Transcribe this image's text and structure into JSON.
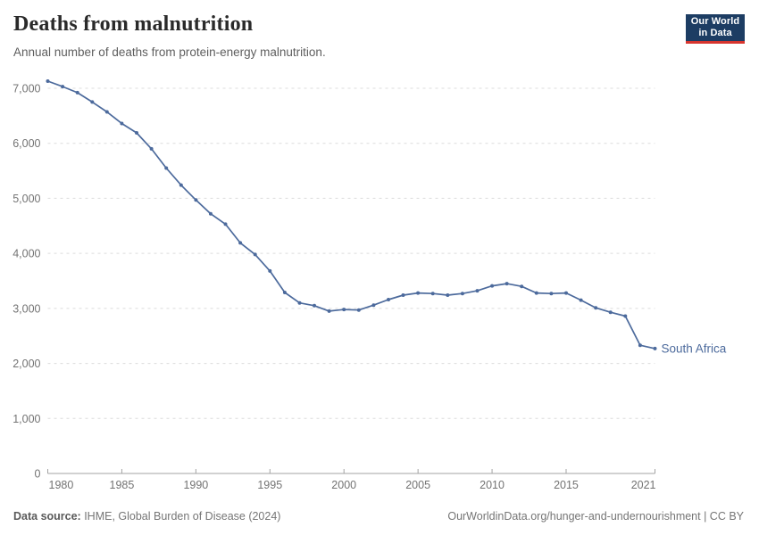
{
  "header": {
    "title": "Deaths from malnutrition",
    "subtitle": "Annual number of deaths from protein-energy malnutrition.",
    "logo": {
      "line1": "Our World",
      "line2": "in Data"
    }
  },
  "chart_data": {
    "type": "line",
    "title": "Deaths from malnutrition",
    "xlabel": "",
    "ylabel": "",
    "xlim": [
      1980,
      2021
    ],
    "ylim": [
      0,
      7300
    ],
    "grid": "horizontal-dashed",
    "legend_position": "end-of-line-label",
    "x_ticks": [
      1980,
      1985,
      1990,
      1995,
      2000,
      2005,
      2010,
      2015,
      2021
    ],
    "y_ticks": [
      0,
      1000,
      2000,
      3000,
      4000,
      5000,
      6000,
      7000
    ],
    "series": [
      {
        "name": "South Africa",
        "color": "#4c6a9c",
        "x": [
          1980,
          1981,
          1982,
          1983,
          1984,
          1985,
          1986,
          1987,
          1988,
          1989,
          1990,
          1991,
          1992,
          1993,
          1994,
          1995,
          1996,
          1997,
          1998,
          1999,
          2000,
          2001,
          2002,
          2003,
          2004,
          2005,
          2006,
          2007,
          2008,
          2009,
          2010,
          2011,
          2012,
          2013,
          2014,
          2015,
          2016,
          2017,
          2018,
          2019,
          2020,
          2021
        ],
        "values": [
          7130,
          7030,
          6920,
          6750,
          6570,
          6360,
          6190,
          5900,
          5550,
          5240,
          4970,
          4720,
          4530,
          4190,
          3980,
          3680,
          3290,
          3100,
          3050,
          2950,
          2980,
          2970,
          3060,
          3160,
          3240,
          3280,
          3270,
          3240,
          3270,
          3320,
          3410,
          3450,
          3400,
          3280,
          3270,
          3280,
          3150,
          3010,
          2930,
          2860,
          2330,
          2270
        ]
      }
    ]
  },
  "footer": {
    "source_label": "Data source:",
    "source_value": " IHME, Global Burden of Disease (2024)",
    "credit": "OurWorldinData.org/hunger-and-undernourishment | CC BY"
  },
  "colors": {
    "line": "#4c6a9c",
    "grid": "#dcdcdc",
    "axis": "#a3a3a3",
    "tick_label": "#737373",
    "logo_bg": "#1d3d63",
    "logo_accent": "#d7352e"
  }
}
